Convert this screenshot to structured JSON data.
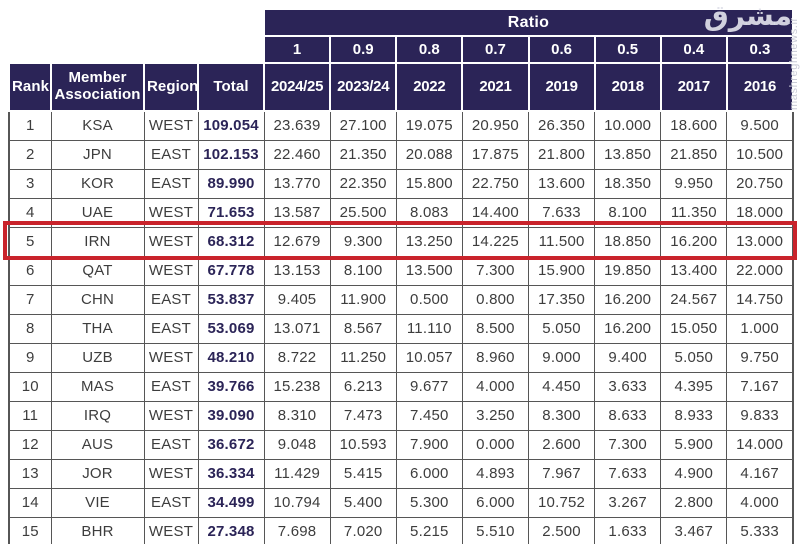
{
  "watermark": {
    "logo_text": "مشرق",
    "site_text": "mashreghnews.ir"
  },
  "colors": {
    "header_navy": "#2b2457",
    "highlight_red": "#c9232b",
    "grid_gray": "#565656",
    "total_text": "#2b2457"
  },
  "chart_data": {
    "type": "table",
    "ratio_header": {
      "label": "Ratio",
      "values": [
        "1",
        "0.9",
        "0.8",
        "0.7",
        "0.6",
        "0.5",
        "0.4",
        "0.3"
      ]
    },
    "column_headers": {
      "rank": "Rank",
      "member": "Member Association",
      "region": "Region",
      "total": "Total"
    },
    "year_headers": [
      "2024/25",
      "2023/24",
      "2022",
      "2021",
      "2019",
      "2018",
      "2017",
      "2016"
    ],
    "highlighted_rank": "5",
    "rows": [
      {
        "rank": "1",
        "member": "KSA",
        "region": "WEST",
        "total": "109.054",
        "values": [
          "23.639",
          "27.100",
          "19.075",
          "20.950",
          "26.350",
          "10.000",
          "18.600",
          "9.500"
        ],
        "highlighted": false
      },
      {
        "rank": "2",
        "member": "JPN",
        "region": "EAST",
        "total": "102.153",
        "values": [
          "22.460",
          "21.350",
          "20.088",
          "17.875",
          "21.800",
          "13.850",
          "21.850",
          "10.500"
        ],
        "highlighted": false
      },
      {
        "rank": "3",
        "member": "KOR",
        "region": "EAST",
        "total": "89.990",
        "values": [
          "13.770",
          "22.350",
          "15.800",
          "22.750",
          "13.600",
          "18.350",
          "9.950",
          "20.750"
        ],
        "highlighted": false
      },
      {
        "rank": "4",
        "member": "UAE",
        "region": "WEST",
        "total": "71.653",
        "values": [
          "13.587",
          "25.500",
          "8.083",
          "14.400",
          "7.633",
          "8.100",
          "11.350",
          "18.000"
        ],
        "highlighted": false
      },
      {
        "rank": "5",
        "member": "IRN",
        "region": "WEST",
        "total": "68.312",
        "values": [
          "12.679",
          "9.300",
          "13.250",
          "14.225",
          "11.500",
          "18.850",
          "16.200",
          "13.000"
        ],
        "highlighted": true
      },
      {
        "rank": "6",
        "member": "QAT",
        "region": "WEST",
        "total": "67.778",
        "values": [
          "13.153",
          "8.100",
          "13.500",
          "7.300",
          "15.900",
          "19.850",
          "13.400",
          "22.000"
        ],
        "highlighted": false
      },
      {
        "rank": "7",
        "member": "CHN",
        "region": "EAST",
        "total": "53.837",
        "values": [
          "9.405",
          "11.900",
          "0.500",
          "0.800",
          "17.350",
          "16.200",
          "24.567",
          "14.750"
        ],
        "highlighted": false
      },
      {
        "rank": "8",
        "member": "THA",
        "region": "EAST",
        "total": "53.069",
        "values": [
          "13.071",
          "8.567",
          "11.110",
          "8.500",
          "5.050",
          "16.200",
          "15.050",
          "1.000"
        ],
        "highlighted": false
      },
      {
        "rank": "9",
        "member": "UZB",
        "region": "WEST",
        "total": "48.210",
        "values": [
          "8.722",
          "11.250",
          "10.057",
          "8.960",
          "9.000",
          "9.400",
          "5.050",
          "9.750"
        ],
        "highlighted": false
      },
      {
        "rank": "10",
        "member": "MAS",
        "region": "EAST",
        "total": "39.766",
        "values": [
          "15.238",
          "6.213",
          "9.677",
          "4.000",
          "4.450",
          "3.633",
          "4.395",
          "7.167"
        ],
        "highlighted": false
      },
      {
        "rank": "11",
        "member": "IRQ",
        "region": "WEST",
        "total": "39.090",
        "values": [
          "8.310",
          "7.473",
          "7.450",
          "3.250",
          "8.300",
          "8.633",
          "8.933",
          "9.833"
        ],
        "highlighted": false
      },
      {
        "rank": "12",
        "member": "AUS",
        "region": "EAST",
        "total": "36.672",
        "values": [
          "9.048",
          "10.593",
          "7.900",
          "0.000",
          "2.600",
          "7.300",
          "5.900",
          "14.000"
        ],
        "highlighted": false
      },
      {
        "rank": "13",
        "member": "JOR",
        "region": "WEST",
        "total": "36.334",
        "values": [
          "11.429",
          "5.415",
          "6.000",
          "4.893",
          "7.967",
          "7.633",
          "4.900",
          "4.167"
        ],
        "highlighted": false
      },
      {
        "rank": "14",
        "member": "VIE",
        "region": "EAST",
        "total": "34.499",
        "values": [
          "10.794",
          "5.400",
          "5.300",
          "6.000",
          "10.752",
          "3.267",
          "2.800",
          "4.000"
        ],
        "highlighted": false
      },
      {
        "rank": "15",
        "member": "BHR",
        "region": "WEST",
        "total": "27.348",
        "values": [
          "7.698",
          "7.020",
          "5.215",
          "5.510",
          "2.500",
          "1.633",
          "3.467",
          "5.333"
        ],
        "highlighted": false
      }
    ]
  }
}
